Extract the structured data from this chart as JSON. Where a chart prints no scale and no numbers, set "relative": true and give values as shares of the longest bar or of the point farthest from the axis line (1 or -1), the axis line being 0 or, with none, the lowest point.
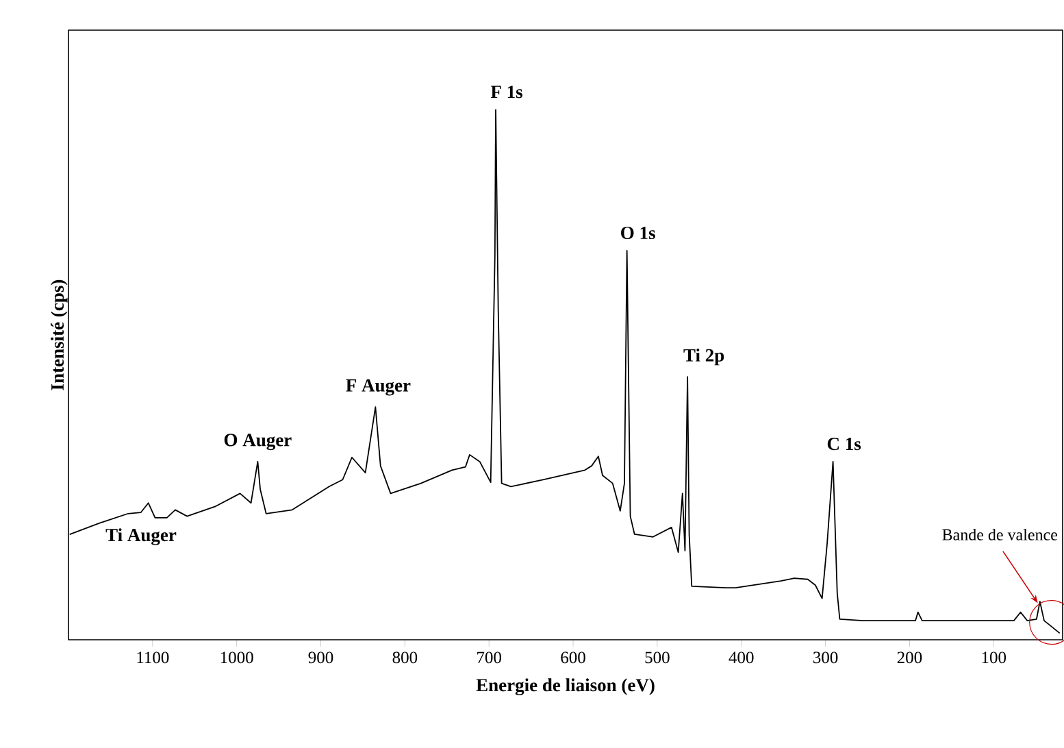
{
  "chart_data": {
    "type": "line",
    "relative": true,
    "xlabel": "Energie de liaison (eV)",
    "ylabel": "Intensité (cps)",
    "xlim": [
      1200,
      18
    ],
    "xticks": [
      1100,
      1000,
      900,
      800,
      700,
      600,
      500,
      400,
      300,
      200,
      100
    ],
    "color": "#000000",
    "grid": false,
    "marker": "none",
    "x": [
      1198,
      1163,
      1129,
      1114,
      1105,
      1097,
      1083,
      1073,
      1059,
      1026,
      996,
      983,
      975,
      972,
      965,
      934,
      890,
      874,
      863,
      847,
      835,
      829,
      817,
      781,
      744,
      728,
      723,
      711,
      698,
      693,
      692,
      689,
      685,
      674,
      635,
      586,
      578,
      570,
      565,
      553,
      544,
      539,
      536,
      532,
      527,
      505,
      483,
      475,
      470,
      467,
      464,
      462,
      459,
      418,
      407,
      353,
      337,
      321,
      312,
      304,
      298,
      291,
      286,
      283,
      255,
      193,
      190,
      185,
      76,
      68,
      60,
      49,
      45,
      40,
      32,
      22
    ],
    "values": [
      0.199,
      0.22,
      0.238,
      0.24,
      0.258,
      0.23,
      0.23,
      0.245,
      0.233,
      0.251,
      0.276,
      0.258,
      0.336,
      0.284,
      0.238,
      0.245,
      0.289,
      0.302,
      0.344,
      0.315,
      0.439,
      0.328,
      0.276,
      0.295,
      0.32,
      0.326,
      0.349,
      0.336,
      0.297,
      0.724,
      1.0,
      0.62,
      0.295,
      0.289,
      0.302,
      0.32,
      0.328,
      0.346,
      0.31,
      0.295,
      0.243,
      0.295,
      0.734,
      0.233,
      0.199,
      0.194,
      0.212,
      0.165,
      0.276,
      0.168,
      0.496,
      0.199,
      0.101,
      0.098,
      0.098,
      0.111,
      0.116,
      0.114,
      0.103,
      0.078,
      0.181,
      0.336,
      0.088,
      0.039,
      0.036,
      0.036,
      0.052,
      0.036,
      0.036,
      0.052,
      0.036,
      0.039,
      0.072,
      0.036,
      0.026,
      0.013
    ],
    "annotations": [
      {
        "text": "F 1s",
        "x": 692,
        "y": 1.0
      },
      {
        "text": "O 1s",
        "x": 536,
        "y": 0.734
      },
      {
        "text": "Ti 2p",
        "x": 464,
        "y": 0.496
      },
      {
        "text": "C 1s",
        "x": 291,
        "y": 0.336
      },
      {
        "text": "F Auger",
        "x": 835,
        "y": 0.439
      },
      {
        "text": "O Auger",
        "x": 975,
        "y": 0.336
      },
      {
        "text": "Ti Auger",
        "x": 1073,
        "y": 0.245
      },
      "Bande de valence"
    ]
  }
}
